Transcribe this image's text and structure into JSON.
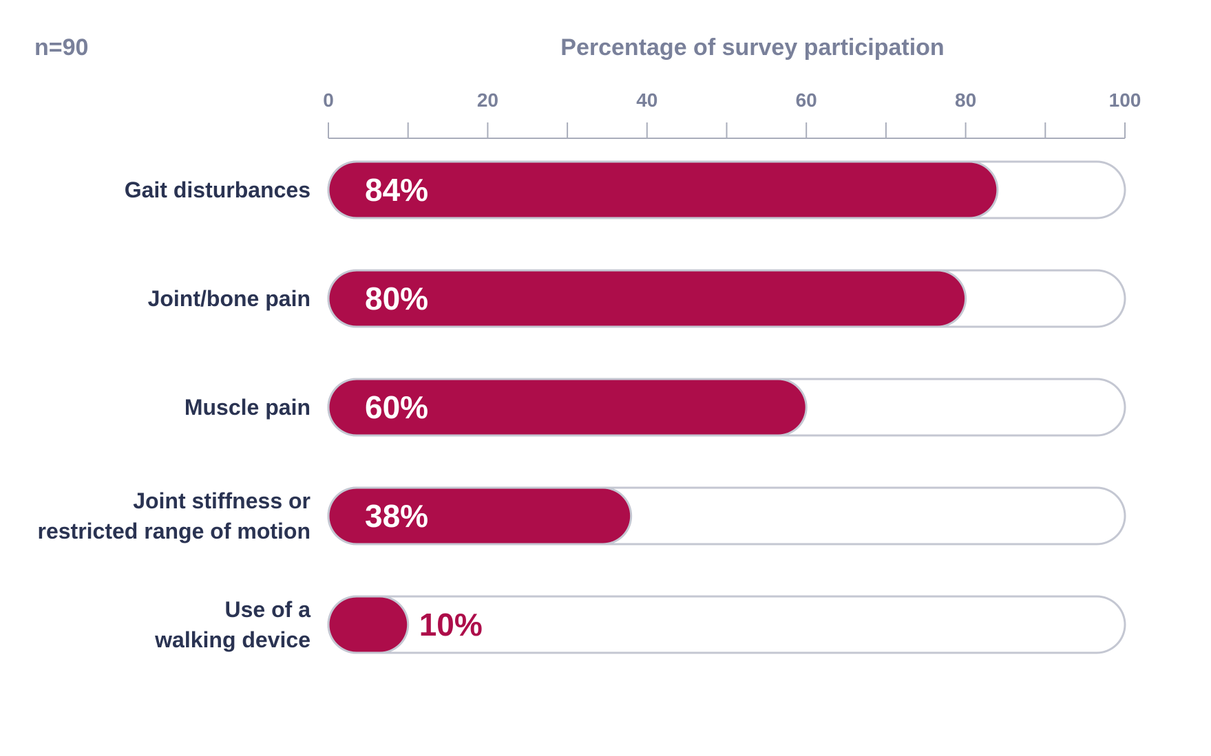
{
  "sample_size_label": "n=90",
  "colors": {
    "bar": "#ad0d4a",
    "track_border": "#c4c7d2",
    "axis": "#a9adbb",
    "tick_text": "#79809a",
    "category_text": "#2a3352"
  },
  "chart_data": {
    "type": "bar",
    "orientation": "horizontal",
    "title": "Percentage of survey participation",
    "xlim": [
      0,
      100
    ],
    "x_ticks": [
      0,
      20,
      40,
      60,
      80,
      100
    ],
    "x_tick_labels": [
      "0",
      "20",
      "40",
      "60",
      "80",
      "100"
    ],
    "x_minor_ticks": [
      10,
      30,
      50,
      70,
      90
    ],
    "axis_position": "top",
    "grid": false,
    "categories": [
      [
        "Gait disturbances"
      ],
      [
        "Joint/bone pain"
      ],
      [
        "Muscle pain"
      ],
      [
        "Joint stiffness or",
        "restricted range of motion"
      ],
      [
        "Use of a",
        "walking device"
      ]
    ],
    "values": [
      84,
      80,
      60,
      38,
      10
    ],
    "value_labels": [
      "84%",
      "80%",
      "60%",
      "38%",
      "10%"
    ]
  }
}
